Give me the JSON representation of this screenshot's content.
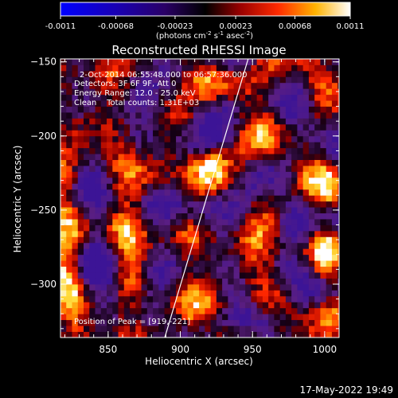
{
  "chart_data": {
    "type": "heatmap",
    "title": "Reconstructed RHESSI Image",
    "xlabel": "Heliocentric X (arcsec)",
    "ylabel": "Heliocentric Y (arcsec)",
    "xlim": [
      817,
      1010
    ],
    "ylim": [
      -336,
      -148
    ],
    "xticks": [
      850,
      900,
      950,
      1000
    ],
    "yticks": [
      -150,
      -200,
      -250,
      -300
    ],
    "colorbar": {
      "min": -0.0011,
      "max": 0.0011,
      "ticks": [
        "-0.0011",
        "-0.00068",
        "-0.00023",
        "0.00023",
        "0.00068",
        "0.0011"
      ],
      "unit_text": "(photons cm",
      "unit_sup1": "-2",
      "unit_mid": " s",
      "unit_sup2": "-1",
      "unit_end": " asec",
      "unit_sup3": "-2",
      "unit_close": ")"
    },
    "annotations": [
      "2-Oct-2014 06:55:48.000 to 06:57:36.000",
      "Detectors: 3F 6F 9F, Att 0",
      "Energy Range: 12.0 - 25.0 keV",
      "Clean    Total counts: 1.31E+03"
    ],
    "peak_label": "Position of Peak = [919,-221]",
    "peak": {
      "x": 919,
      "y": -221
    },
    "limb_line": [
      {
        "x": 888,
        "y": -340
      },
      {
        "x": 947,
        "y": -148
      }
    ],
    "pixel_size_arcsec": 4,
    "footer_date": "17-May-2022 19:49"
  }
}
